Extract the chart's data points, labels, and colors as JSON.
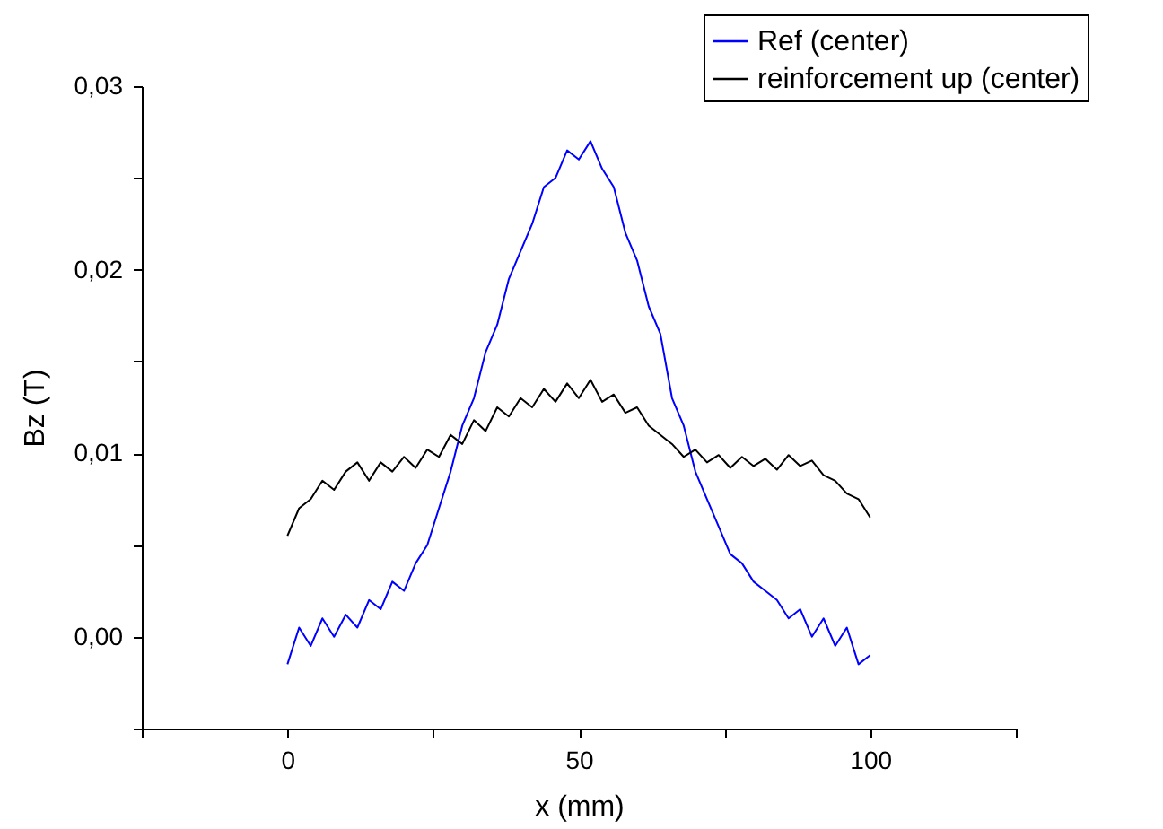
{
  "chart_data": {
    "type": "line",
    "xlabel": "x (mm)",
    "ylabel": "Bz (T)",
    "legend": "top right",
    "marker": "none",
    "line_style": "solid",
    "grid": false,
    "xlim": [
      -25,
      125
    ],
    "xticks": [
      {
        "value": -25,
        "label": null
      },
      0,
      {
        "value": 25,
        "label": null
      },
      50,
      {
        "value": 75,
        "label": null
      },
      100,
      {
        "value": 125,
        "label": null
      }
    ],
    "ylim": [
      -0.005,
      0.03
    ],
    "yticks": [
      {
        "value": -0.005,
        "label": null
      },
      {
        "value": 0,
        "label": "0,00"
      },
      {
        "value": 0.005,
        "label": null
      },
      {
        "value": 0.01,
        "label": "0,01"
      },
      {
        "value": 0.015,
        "label": null
      },
      {
        "value": 0.02,
        "label": "0,02"
      },
      {
        "value": 0.025,
        "label": null
      },
      {
        "value": 0.03,
        "label": "0,03"
      }
    ],
    "x": [
      0,
      2,
      4,
      6,
      8,
      10,
      12,
      14,
      16,
      18,
      20,
      22,
      24,
      26,
      28,
      30,
      32,
      34,
      36,
      38,
      40,
      42,
      44,
      46,
      48,
      50,
      52,
      54,
      56,
      58,
      60,
      62,
      64,
      66,
      68,
      70,
      72,
      74,
      76,
      78,
      80,
      82,
      84,
      86,
      88,
      90,
      92,
      94,
      96,
      98,
      100
    ],
    "series": [
      {
        "name": "Ref (center)",
        "color": "#0000ff",
        "values": [
          -0.0015,
          0.0005,
          -0.0005,
          0.001,
          0.0,
          0.0012,
          0.0005,
          0.002,
          0.0015,
          0.003,
          0.0025,
          0.004,
          0.005,
          0.007,
          0.009,
          0.0115,
          0.013,
          0.0155,
          0.017,
          0.0195,
          0.021,
          0.0225,
          0.0245,
          0.025,
          0.0265,
          0.026,
          0.027,
          0.0255,
          0.0245,
          0.022,
          0.0205,
          0.018,
          0.0165,
          0.013,
          0.0115,
          0.009,
          0.0075,
          0.006,
          0.0045,
          0.004,
          0.003,
          0.0025,
          0.002,
          0.001,
          0.0015,
          0.0,
          0.001,
          -0.0005,
          0.0005,
          -0.0015,
          -0.001
        ]
      },
      {
        "name": "reinforcement up (center)",
        "color": "#000000",
        "values": [
          0.0055,
          0.007,
          0.0075,
          0.0085,
          0.008,
          0.009,
          0.0095,
          0.0085,
          0.0095,
          0.009,
          0.0098,
          0.0092,
          0.0102,
          0.0098,
          0.011,
          0.0105,
          0.0118,
          0.0112,
          0.0125,
          0.012,
          0.013,
          0.0125,
          0.0135,
          0.0128,
          0.0138,
          0.013,
          0.014,
          0.0128,
          0.0132,
          0.0122,
          0.0125,
          0.0115,
          0.011,
          0.0105,
          0.0098,
          0.0102,
          0.0095,
          0.0099,
          0.0092,
          0.0098,
          0.0093,
          0.0097,
          0.0091,
          0.0099,
          0.0093,
          0.0096,
          0.0088,
          0.0085,
          0.0078,
          0.0075,
          0.0065
        ]
      }
    ]
  }
}
